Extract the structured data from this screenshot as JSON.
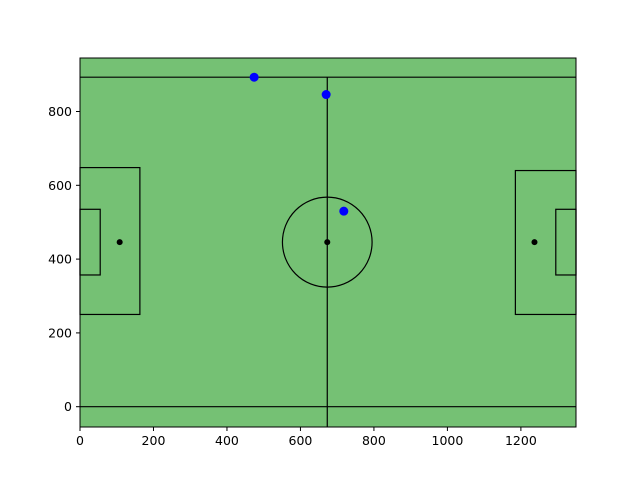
{
  "chart_data": {
    "type": "scatter",
    "title": "",
    "xlabel": "",
    "ylabel": "",
    "xlim": [
      0,
      1350
    ],
    "ylim": [
      -55,
      945
    ],
    "x_ticks": [
      0,
      200,
      400,
      600,
      800,
      1000,
      1200
    ],
    "y_ticks": [
      0,
      200,
      400,
      600,
      800
    ],
    "grid": false,
    "legend": "none",
    "pitch": {
      "touchline_bottom_y": 0,
      "touchline_top_y": 893,
      "halfway_x": 673,
      "center_spot": [
        673,
        446
      ],
      "center_circle_radius": 122,
      "left_penalty_box": {
        "x0": 0,
        "x1": 163,
        "y0": 250,
        "y1": 648
      },
      "left_goal_box": {
        "x0": 0,
        "x1": 55,
        "y0": 357,
        "y1": 535
      },
      "left_penalty_spot": [
        108,
        446
      ],
      "right_penalty_box": {
        "x0": 1185,
        "x1": 1350,
        "y0": 250,
        "y1": 640
      },
      "right_goal_box": {
        "x0": 1295,
        "x1": 1350,
        "y0": 357,
        "y1": 535
      },
      "right_penalty_spot": [
        1237,
        446
      ]
    },
    "series": [
      {
        "points": [
          {
            "x": 474,
            "y": 893
          },
          {
            "x": 670,
            "y": 846
          },
          {
            "x": 718,
            "y": 530
          }
        ]
      }
    ],
    "colors": {
      "pitch": "#75c174",
      "lines": "#000000",
      "points": "#0000ff"
    }
  }
}
